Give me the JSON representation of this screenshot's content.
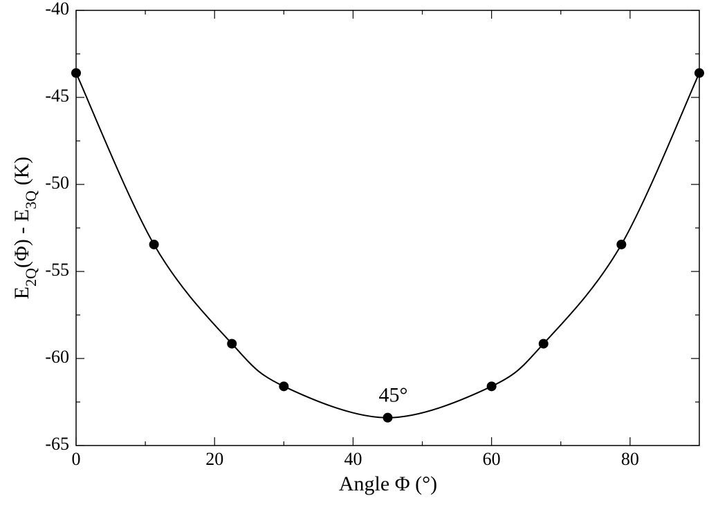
{
  "chart_data": {
    "type": "line",
    "xlabel": "Angle Φ (°)",
    "ylabel": [
      {
        "text": "E"
      },
      {
        "text": "2Q",
        "sub": true
      },
      {
        "text": "(Φ) - E"
      },
      {
        "text": "3Q",
        "sub": true
      },
      {
        "text": " (K)"
      }
    ],
    "x": [
      0,
      11.25,
      22.5,
      30,
      45,
      60,
      67.5,
      78.75,
      90
    ],
    "series": [
      {
        "color": "#000000",
        "values": [
          -43.6,
          -53.45,
          -59.15,
          -61.6,
          -63.4,
          -61.6,
          -59.15,
          -53.45,
          -43.6
        ]
      }
    ],
    "xlim": [
      0,
      90
    ],
    "ylim": [
      -65,
      -40
    ],
    "xticks": [
      0,
      20,
      40,
      60,
      80
    ],
    "yticks": [
      -65,
      -60,
      -55,
      -50,
      -45,
      -40
    ],
    "xminorticks": [
      10,
      30,
      50,
      70
    ],
    "yminorticks": [
      -62.5,
      -57.5,
      -52.5,
      -47.5,
      -42.5
    ],
    "annotations": [
      {
        "text": "45°",
        "x": 45,
        "y": -63.4
      }
    ],
    "smooth": true,
    "markers": true
  }
}
